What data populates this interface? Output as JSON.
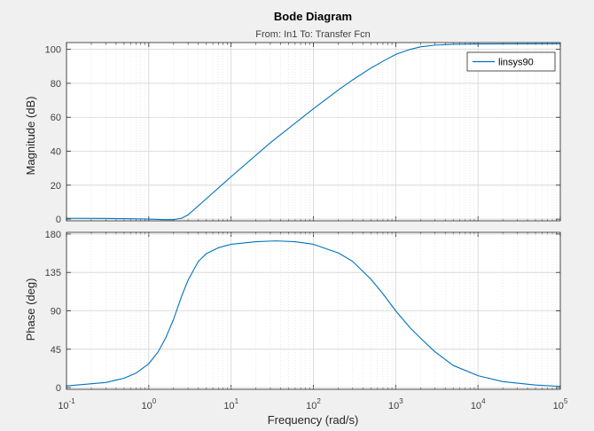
{
  "chart_data": {
    "type": "line",
    "title": "Bode Diagram",
    "subtitle": "From: In1  To: Transfer Fcn",
    "xlabel": "Frequency  (rad/s)",
    "xscale": "log",
    "xlim": [
      0.1,
      100000
    ],
    "x_ticks": [
      0.1,
      1,
      10,
      100,
      1000,
      10000,
      100000
    ],
    "x_tick_labels": [
      {
        "base": "10",
        "exp": "-1"
      },
      {
        "base": "10",
        "exp": "0"
      },
      {
        "base": "10",
        "exp": "1"
      },
      {
        "base": "10",
        "exp": "2"
      },
      {
        "base": "10",
        "exp": "3"
      },
      {
        "base": "10",
        "exp": "4"
      },
      {
        "base": "10",
        "exp": "5"
      }
    ],
    "grid": true,
    "minor_grid": true,
    "line_color": "#0072bd",
    "legend": {
      "entries": [
        "linsys90"
      ],
      "placement": "top-right"
    },
    "panels": [
      {
        "id": "magnitude",
        "ylabel": "Magnitude (dB)",
        "ylim": [
          -1,
          104
        ],
        "y_ticks": [
          0,
          20,
          40,
          60,
          80,
          100
        ],
        "y_tick_labels": [
          "0",
          "20",
          "40",
          "60",
          "80",
          "100"
        ],
        "series": [
          {
            "name": "linsys90",
            "x": [
              0.1,
              0.3,
              0.6,
              1,
              1.5,
              2,
              2.5,
              3,
              5,
              10,
              30,
              100,
              200,
              300,
              500,
              700,
              1000,
              1500,
              2000,
              3000,
              5000,
              10000,
              100000
            ],
            "y": [
              0.5,
              0.4,
              0.2,
              0,
              -0.3,
              -0.3,
              0.5,
              2.5,
              12,
              25,
              45,
              65,
              76,
              82,
              89,
              93,
              97,
              100,
              101.5,
              102.5,
              103,
              103.2,
              103.3
            ]
          }
        ]
      },
      {
        "id": "phase",
        "ylabel": "Phase (deg)",
        "ylim": [
          -2,
          182
        ],
        "y_ticks": [
          0,
          45,
          90,
          135,
          180
        ],
        "y_tick_labels": [
          "0",
          "45",
          "90",
          "135",
          "180"
        ],
        "series": [
          {
            "name": "linsys90",
            "x": [
              0.1,
              0.3,
              0.5,
              0.7,
              1,
              1.3,
              1.6,
              2,
              2.5,
              3,
              4,
              5,
              7,
              10,
              20,
              35,
              60,
              100,
              200,
              300,
              500,
              700,
              1000,
              1500,
              2000,
              3000,
              5000,
              10000,
              20000,
              50000,
              100000
            ],
            "y": [
              2,
              6,
              11,
              17,
              28,
              42,
              58,
              80,
              107,
              126,
              148,
              157,
              164,
              168,
              171,
              172,
              171,
              168,
              158,
              148,
              127,
              110,
              90,
              70,
              58,
              42,
              26,
              14,
              7,
              3,
              1.5
            ]
          }
        ]
      }
    ]
  }
}
